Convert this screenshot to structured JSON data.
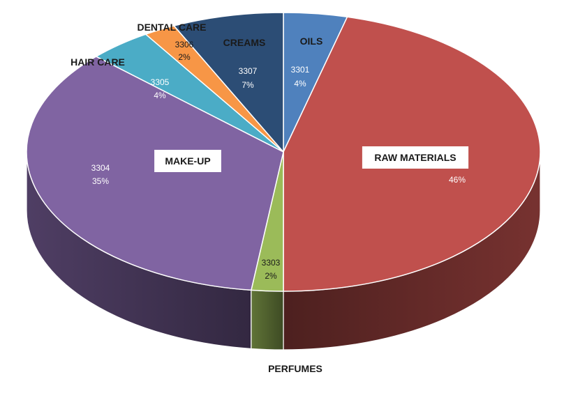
{
  "chart_data": {
    "type": "pie",
    "style": "3d",
    "slices": [
      {
        "key": "oils",
        "code": "3301",
        "label": "OILS",
        "value": 4,
        "percent_label": "4%",
        "color": "#4f81bd"
      },
      {
        "key": "raw_materials",
        "code": "",
        "label": "RAW MATERIALS",
        "value": 46,
        "percent_label": "46%",
        "color": "#c0504d"
      },
      {
        "key": "perfumes",
        "code": "3303",
        "label": "PERFUMES",
        "value": 2,
        "percent_label": "2%",
        "color": "#9bbb59"
      },
      {
        "key": "make_up",
        "code": "3304",
        "label": "MAKE-UP",
        "value": 35,
        "percent_label": "35%",
        "color": "#8064a2"
      },
      {
        "key": "hair_care",
        "code": "3305",
        "label": "HAIR CARE",
        "value": 4,
        "percent_label": "4%",
        "color": "#4bacc6"
      },
      {
        "key": "dental_care",
        "code": "3306",
        "label": "DENTAL CARE",
        "value": 2,
        "percent_label": "2%",
        "color": "#f79646"
      },
      {
        "key": "creams",
        "code": "3307",
        "label": "CREAMS",
        "value": 7,
        "percent_label": "7%",
        "color": "#2c4d75"
      }
    ]
  }
}
